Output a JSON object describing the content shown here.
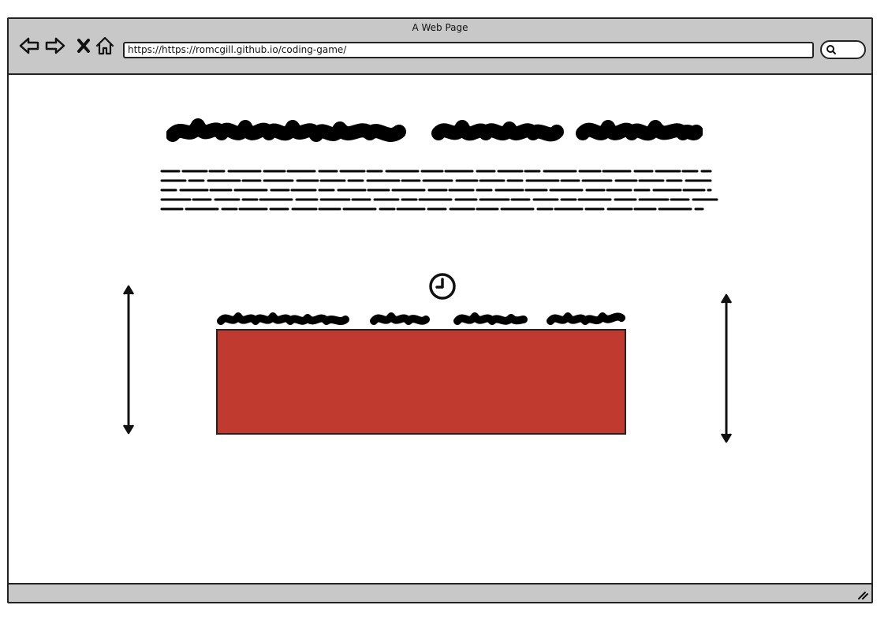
{
  "window": {
    "title": "A Web Page",
    "address_url": "https://https://romcgill.github.io/coding-game/"
  },
  "toolbar": {
    "back_icon": "back-arrow-icon",
    "forward_icon": "forward-arrow-icon",
    "stop_icon": "close-icon",
    "home_icon": "home-icon",
    "search_icon": "search-icon"
  },
  "main": {
    "heading_placeholder": "scribble heading",
    "paragraph_placeholder": "scribble paragraph",
    "timer_icon": "clock-icon",
    "game_title_placeholder": "scribble subheading",
    "game_area_color": "#c03a2f"
  },
  "colors": {
    "chrome": "#c8c8c8",
    "accent": "#c03a2f",
    "ink": "#111111"
  }
}
